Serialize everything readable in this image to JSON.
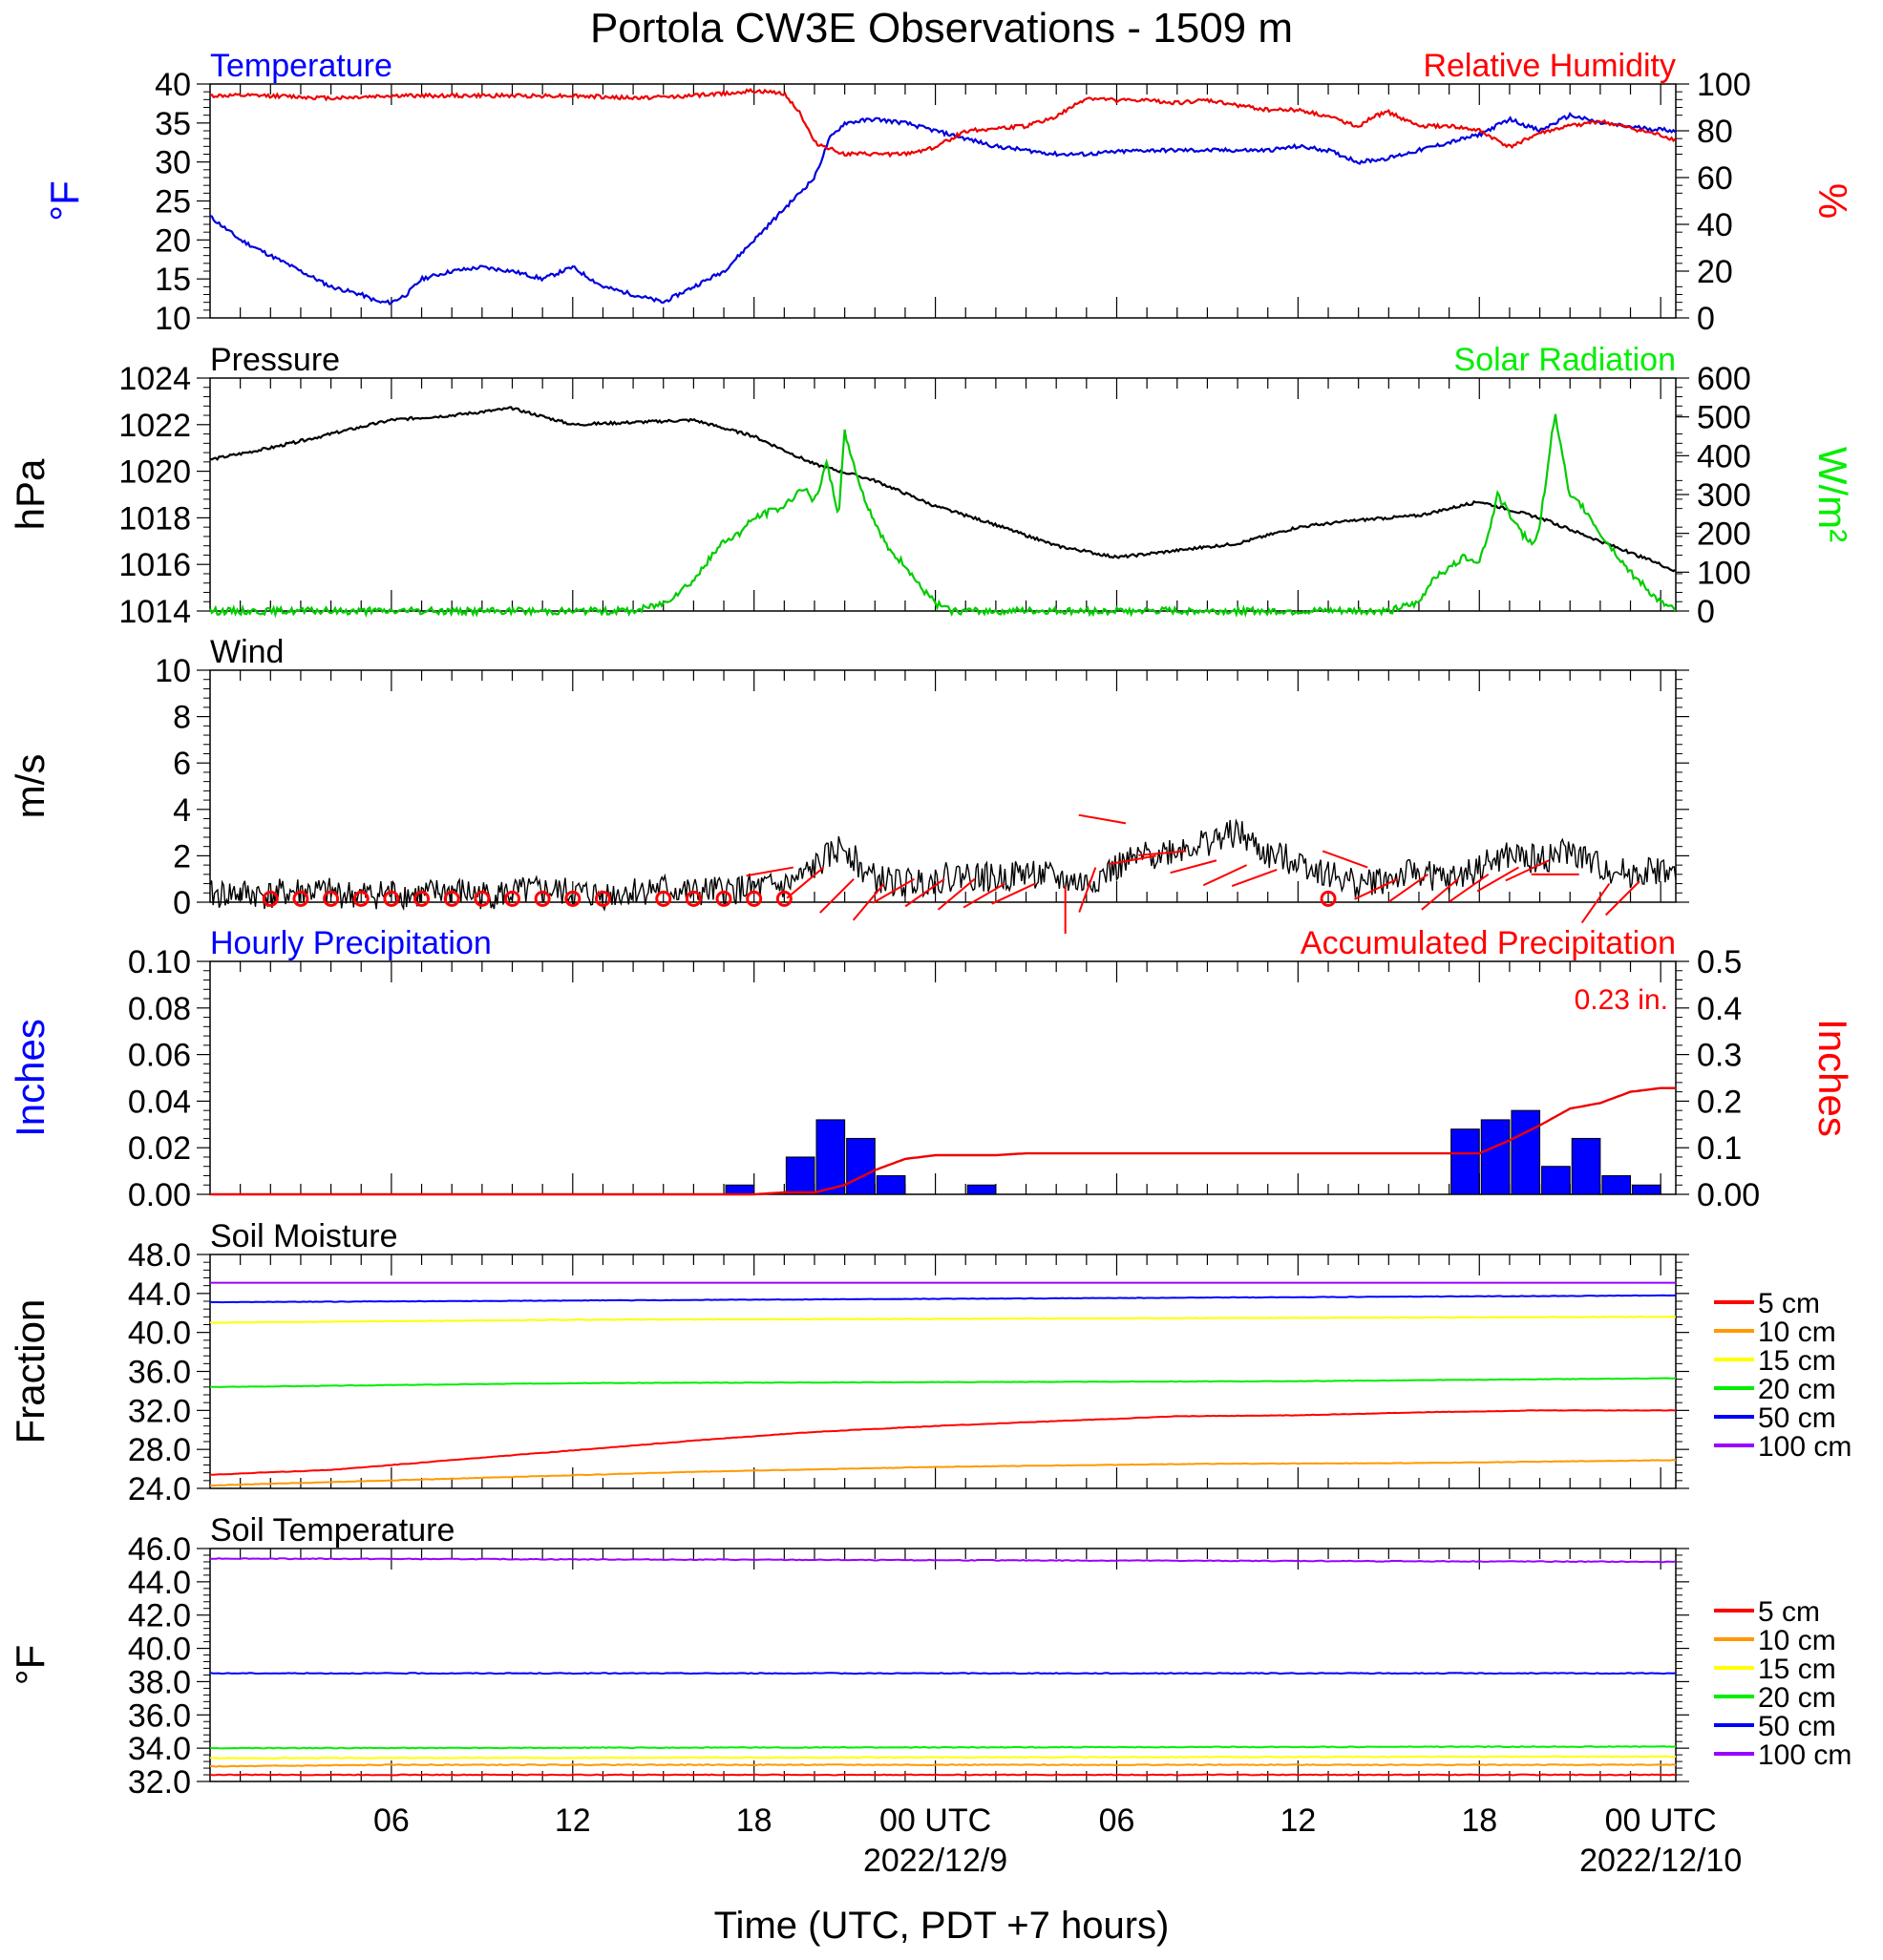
{
  "figure": {
    "title": "Portola CW3E Observations - 1509 m",
    "xlabel": "Time (UTC, PDT +7 hours)",
    "x_ticks": [
      {
        "hour": 6,
        "label": "06",
        "date": ""
      },
      {
        "hour": 12,
        "label": "12",
        "date": ""
      },
      {
        "hour": 18,
        "label": "18",
        "date": ""
      },
      {
        "hour": 24,
        "label": "00 UTC",
        "date": "2022/12/9"
      },
      {
        "hour": 30,
        "label": "06",
        "date": ""
      },
      {
        "hour": 36,
        "label": "12",
        "date": ""
      },
      {
        "hour": 42,
        "label": "18",
        "date": ""
      },
      {
        "hour": 48,
        "label": "00 UTC",
        "date": "2022/12/10"
      }
    ]
  },
  "chart_data": [
    {
      "type": "line",
      "title_left": "Temperature",
      "title_right": "Relative Humidity",
      "ylabel_left": "°F",
      "ylabel_right": "%",
      "ylim_left": [
        10,
        40
      ],
      "ylim_right": [
        0,
        100
      ],
      "yticks_left": [
        "10",
        "15",
        "20",
        "25",
        "30",
        "35",
        "40"
      ],
      "yticks_right": [
        "0",
        "20",
        "40",
        "60",
        "80",
        "100"
      ],
      "colors": {
        "left": "#0000ff",
        "right": "#ff0000"
      },
      "series": [
        {
          "axis": "left",
          "color": "#0000dd",
          "x": [
            0,
            1,
            2,
            3,
            4,
            5,
            5.6,
            6,
            6.5,
            7,
            8,
            9,
            10,
            11,
            12,
            13,
            14,
            15,
            16,
            17,
            18,
            19,
            19.5,
            20,
            20.5,
            21,
            22,
            23,
            24,
            25,
            26,
            27,
            28,
            29,
            30,
            31,
            32,
            33,
            34,
            35,
            36,
            37,
            38,
            39,
            40,
            41,
            42,
            43,
            44,
            45,
            46,
            47,
            48.5
          ],
          "y": [
            23,
            20,
            18,
            16,
            14,
            13,
            12,
            12,
            13,
            15,
            16,
            16.5,
            16,
            15,
            16.5,
            14,
            13,
            12,
            14,
            16,
            20,
            24,
            26,
            28,
            33,
            35,
            35.5,
            35,
            34,
            33,
            32,
            31.5,
            31,
            31,
            31.3,
            31.5,
            31.5,
            31.5,
            31.5,
            31.5,
            32,
            31.5,
            30,
            30.5,
            31.5,
            32.5,
            33.5,
            35.5,
            34,
            36,
            35,
            34.5,
            34
          ]
        },
        {
          "axis": "right",
          "color": "#ee0000",
          "x": [
            0,
            2,
            4,
            6,
            8,
            10,
            12,
            14,
            16,
            17,
            18,
            19,
            19.5,
            20,
            21,
            22,
            23,
            24,
            25,
            26,
            27,
            28,
            29,
            30,
            31,
            32,
            33,
            34,
            35,
            36,
            37,
            38,
            38.5,
            39,
            40,
            41,
            42,
            43,
            44,
            45,
            46,
            47,
            48,
            48.5
          ],
          "y": [
            95,
            95,
            94,
            95,
            95,
            95,
            95,
            94,
            95,
            96,
            97,
            96,
            88,
            75,
            70,
            70,
            70,
            73,
            80,
            81,
            82,
            86,
            94,
            93,
            93,
            92,
            93,
            91,
            89,
            89,
            86,
            82,
            86,
            88,
            82,
            82,
            80,
            73,
            79,
            82,
            84,
            81,
            78,
            76
          ]
        },
        {
          "name": "",
          "values": []
        }
      ]
    },
    {
      "type": "line",
      "title_left": "Pressure",
      "title_right": "Solar Radiation",
      "ylabel_left": "hPa",
      "ylabel_right": "W/m²",
      "ylim_left": [
        1014,
        1024
      ],
      "ylim_right": [
        0,
        600
      ],
      "yticks_left": [
        "1014",
        "1016",
        "1018",
        "1020",
        "1022",
        "1024"
      ],
      "yticks_right": [
        "0",
        "100",
        "200",
        "300",
        "400",
        "500",
        "600"
      ],
      "colors": {
        "left": "#000000",
        "right": "#00ee00"
      },
      "series": [
        {
          "axis": "left",
          "color": "#000000",
          "x": [
            0,
            2,
            4,
            6,
            8,
            10,
            12,
            14,
            16,
            18,
            20,
            22,
            24,
            26,
            28,
            30,
            32,
            34,
            36,
            38,
            40,
            42,
            44,
            46,
            48,
            48.5
          ],
          "y": [
            1020.5,
            1021,
            1021.6,
            1022.2,
            1022.4,
            1022.7,
            1022,
            1022.1,
            1022.2,
            1021.5,
            1020.3,
            1019.6,
            1018.5,
            1017.7,
            1016.8,
            1016.3,
            1016.6,
            1016.9,
            1017.6,
            1017.9,
            1018.1,
            1018.7,
            1018,
            1017,
            1016,
            1015.7
          ]
        },
        {
          "axis": "right",
          "color": "#00cc00",
          "x": [
            0,
            14,
            15,
            16,
            17,
            17.5,
            18,
            19,
            19.6,
            20,
            20.4,
            20.8,
            21,
            21.6,
            22,
            22.5,
            23,
            23.5,
            24,
            24.5,
            39,
            40,
            40.5,
            41,
            41.5,
            42,
            42.3,
            42.6,
            43,
            43.4,
            43.8,
            44,
            44.5,
            45,
            45.3,
            45.6,
            46,
            46.5,
            47,
            47.5,
            48,
            48.5
          ],
          "y": [
            0,
            0,
            20,
            80,
            180,
            200,
            240,
            270,
            320,
            280,
            380,
            250,
            460,
            300,
            230,
            150,
            120,
            60,
            20,
            0,
            0,
            20,
            90,
            110,
            140,
            130,
            200,
            300,
            250,
            200,
            170,
            220,
            510,
            290,
            280,
            250,
            200,
            150,
            100,
            60,
            20,
            0
          ]
        }
      ]
    },
    {
      "type": "line",
      "title_left": "Wind",
      "ylabel_left": "m/s",
      "ylim_left": [
        0,
        10
      ],
      "yticks_left": [
        "0",
        "2",
        "4",
        "6",
        "8",
        "10"
      ],
      "series": [
        {
          "axis": "left",
          "color": "#000000",
          "x": [
            0,
            1,
            2,
            3,
            4,
            5,
            6,
            7,
            8,
            9,
            10,
            11,
            12,
            13,
            14,
            15,
            16,
            17,
            18,
            19,
            19.5,
            20,
            20.5,
            21,
            21.5,
            22,
            23,
            24,
            25,
            26,
            27,
            28,
            29,
            30,
            31,
            32,
            33,
            34,
            35,
            36,
            37,
            38,
            39,
            40,
            41,
            42,
            43,
            44,
            45,
            46,
            47,
            48,
            48.5
          ],
          "y": [
            0.3,
            0.4,
            0.3,
            0.5,
            0.4,
            0.3,
            0.4,
            0.3,
            0.5,
            0.3,
            0.4,
            0.5,
            0.4,
            0.3,
            0.5,
            0.6,
            0.4,
            0.5,
            0.6,
            0.7,
            1.0,
            1.5,
            2.0,
            2.5,
            1.5,
            1.0,
            0.8,
            1.0,
            1.2,
            1.0,
            1.3,
            1.0,
            0.8,
            1.5,
            2.0,
            2.3,
            2.6,
            3.0,
            2.0,
            1.8,
            1.2,
            0.8,
            1.0,
            1.3,
            0.9,
            1.5,
            2.0,
            1.8,
            2.2,
            1.5,
            1.2,
            1.4,
            1.1
          ]
        }
      ],
      "calm_hours": [
        2,
        3,
        4,
        5,
        6,
        7,
        8,
        9,
        10,
        11,
        12,
        13,
        15,
        16,
        17,
        18,
        19,
        37
      ],
      "barbs": [
        {
          "hour": 19.3,
          "speed": 1.5,
          "dir": 260
        },
        {
          "hour": 20.3,
          "speed": 1.5,
          "dir": 230
        },
        {
          "hour": 21.3,
          "speed": 1.0,
          "dir": 225
        },
        {
          "hour": 22.3,
          "speed": 0.8,
          "dir": 220
        },
        {
          "hour": 23.3,
          "speed": 1.0,
          "dir": 240
        },
        {
          "hour": 24.3,
          "speed": 1.0,
          "dir": 235
        },
        {
          "hour": 25.3,
          "speed": 1.0,
          "dir": 230
        },
        {
          "hour": 26.3,
          "speed": 0.8,
          "dir": 240
        },
        {
          "hour": 27.3,
          "speed": 0.8,
          "dir": 245
        },
        {
          "hour": 28.3,
          "speed": 0.7,
          "dir": 180
        },
        {
          "hour": 29.3,
          "speed": 1.5,
          "dir": 200
        },
        {
          "hour": 30.3,
          "speed": 3.4,
          "dir": 280
        },
        {
          "hour": 31.3,
          "speed": 2.0,
          "dir": 260
        },
        {
          "hour": 32.3,
          "speed": 2.2,
          "dir": 265
        },
        {
          "hour": 33.3,
          "speed": 1.8,
          "dir": 255
        },
        {
          "hour": 34.3,
          "speed": 1.6,
          "dir": 245
        },
        {
          "hour": 35.3,
          "speed": 1.4,
          "dir": 250
        },
        {
          "hour": 38.3,
          "speed": 1.5,
          "dir": 290
        },
        {
          "hour": 39.3,
          "speed": 1.0,
          "dir": 245
        },
        {
          "hour": 40.3,
          "speed": 1.2,
          "dir": 235
        },
        {
          "hour": 41.3,
          "speed": 1.0,
          "dir": 230
        },
        {
          "hour": 42.3,
          "speed": 1.2,
          "dir": 235
        },
        {
          "hour": 43.3,
          "speed": 1.5,
          "dir": 240
        },
        {
          "hour": 44.3,
          "speed": 1.8,
          "dir": 245
        },
        {
          "hour": 45.3,
          "speed": 1.2,
          "dir": 270
        },
        {
          "hour": 46.3,
          "speed": 0.8,
          "dir": 215
        },
        {
          "hour": 47.3,
          "speed": 0.9,
          "dir": 225
        }
      ]
    },
    {
      "type": "bar",
      "title_left": "Hourly Precipitation",
      "title_right": "Accumulated Precipitation",
      "annotation": "0.23 in.",
      "ylabel_left": "Inches",
      "ylabel_right": "Inches",
      "ylim_left": [
        0,
        0.1
      ],
      "ylim_right": [
        0,
        0.5
      ],
      "yticks_left": [
        "0.00",
        "0.02",
        "0.04",
        "0.06",
        "0.08",
        "0.10"
      ],
      "yticks_right": [
        "0.00",
        "0.1",
        "0.2",
        "0.3",
        "0.4",
        "0.5"
      ],
      "colors": {
        "left": "#0000ff",
        "right": "#ff0000"
      },
      "bars": [
        {
          "hour": 18,
          "value": 0.004
        },
        {
          "hour": 20,
          "value": 0.016
        },
        {
          "hour": 21,
          "value": 0.032
        },
        {
          "hour": 22,
          "value": 0.024
        },
        {
          "hour": 23,
          "value": 0.008
        },
        {
          "hour": 26,
          "value": 0.004
        },
        {
          "hour": 42,
          "value": 0.028
        },
        {
          "hour": 43,
          "value": 0.032
        },
        {
          "hour": 44,
          "value": 0.036
        },
        {
          "hour": 45,
          "value": 0.012
        },
        {
          "hour": 46,
          "value": 0.024
        },
        {
          "hour": 47,
          "value": 0.008
        },
        {
          "hour": 48,
          "value": 0.004
        }
      ],
      "accum": {
        "x": [
          0,
          18,
          19,
          20,
          21,
          22,
          23,
          24,
          26,
          27,
          42,
          43,
          44,
          45,
          46,
          47,
          48,
          48.5
        ],
        "y": [
          0,
          0,
          0.004,
          0.004,
          0.02,
          0.052,
          0.076,
          0.084,
          0.084,
          0.088,
          0.088,
          0.116,
          0.148,
          0.184,
          0.196,
          0.22,
          0.228,
          0.228
        ]
      }
    },
    {
      "type": "line",
      "title_left": "Soil Moisture",
      "ylabel_left": "Fraction",
      "ylim_left": [
        24,
        48
      ],
      "yticks_left": [
        "24.0",
        "28.0",
        "32.0",
        "36.0",
        "40.0",
        "44.0",
        "48.0"
      ],
      "legend": [
        "5 cm",
        "10 cm",
        "15 cm",
        "20 cm",
        "50 cm",
        "100 cm"
      ],
      "legend_colors": [
        "#ff0000",
        "#ff9900",
        "#ffff00",
        "#00ee00",
        "#0000ff",
        "#9900ff"
      ],
      "series": [
        {
          "name": "5 cm",
          "color": "#ff0000",
          "x": [
            0,
            4,
            8,
            12,
            16,
            20,
            24,
            28,
            32,
            36,
            40,
            44,
            48.5
          ],
          "y": [
            25.4,
            25.9,
            26.9,
            27.9,
            28.9,
            29.8,
            30.4,
            30.9,
            31.4,
            31.5,
            31.8,
            32.0,
            32.0
          ]
        },
        {
          "name": "10 cm",
          "color": "#ff9900",
          "x": [
            0,
            8,
            16,
            24,
            32,
            40,
            48.5
          ],
          "y": [
            24.3,
            25.0,
            25.7,
            26.2,
            26.5,
            26.6,
            26.9
          ]
        },
        {
          "name": "15 cm",
          "color": "#ffff00",
          "x": [
            0,
            12,
            24,
            36,
            48.5
          ],
          "y": [
            41.0,
            41.3,
            41.4,
            41.5,
            41.6
          ]
        },
        {
          "name": "20 cm",
          "color": "#00ee00",
          "x": [
            0,
            12,
            24,
            36,
            48.5
          ],
          "y": [
            34.4,
            34.8,
            34.9,
            35.0,
            35.3
          ]
        },
        {
          "name": "50 cm",
          "color": "#0000ff",
          "x": [
            0,
            48.5
          ],
          "y": [
            43.1,
            43.8
          ]
        },
        {
          "name": "100 cm",
          "color": "#9900ff",
          "x": [
            0,
            48.5
          ],
          "y": [
            45.1,
            45.1
          ]
        }
      ]
    },
    {
      "type": "line",
      "title_left": "Soil Temperature",
      "ylabel_left": "°F",
      "ylim_left": [
        32,
        46
      ],
      "yticks_left": [
        "32.0",
        "34.0",
        "36.0",
        "38.0",
        "40.0",
        "42.0",
        "44.0",
        "46.0"
      ],
      "legend": [
        "5 cm",
        "10 cm",
        "15 cm",
        "20 cm",
        "50 cm",
        "100 cm"
      ],
      "legend_colors": [
        "#ff0000",
        "#ff9900",
        "#ffff00",
        "#00ee00",
        "#0000ff",
        "#9900ff"
      ],
      "series": [
        {
          "name": "5 cm",
          "color": "#ff0000",
          "x": [
            0,
            48.5
          ],
          "y": [
            32.4,
            32.4
          ]
        },
        {
          "name": "10 cm",
          "color": "#ff9900",
          "x": [
            0,
            6,
            48.5
          ],
          "y": [
            32.9,
            33.0,
            33.0
          ]
        },
        {
          "name": "15 cm",
          "color": "#ffff00",
          "x": [
            0,
            48.5
          ],
          "y": [
            33.4,
            33.5
          ]
        },
        {
          "name": "20 cm",
          "color": "#00ee00",
          "x": [
            0,
            48.5
          ],
          "y": [
            34.0,
            34.1
          ]
        },
        {
          "name": "50 cm",
          "color": "#0000ff",
          "x": [
            0,
            48.5
          ],
          "y": [
            38.5,
            38.5
          ]
        },
        {
          "name": "100 cm",
          "color": "#9900ff",
          "x": [
            0,
            24,
            48.5
          ],
          "y": [
            45.4,
            45.3,
            45.2
          ]
        }
      ]
    }
  ]
}
